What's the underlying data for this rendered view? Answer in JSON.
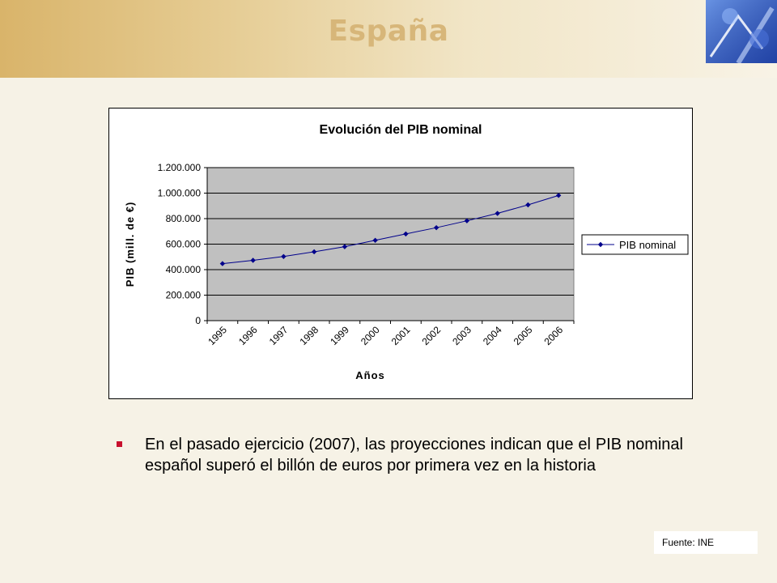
{
  "slide": {
    "title": "España",
    "bullet": "En el pasado ejercicio (2007), las proyecciones indican que el PIB nominal español superó el billón de euros por primera vez en la historia",
    "source": "Fuente: INE"
  },
  "colors": {
    "series": "#00008b",
    "plot_bg": "#c0c0c0",
    "title": "#d7b679",
    "bullet": "#c8102e"
  },
  "chart_data": {
    "type": "line",
    "title": "Evolución del PIB nominal",
    "xlabel": "Años",
    "ylabel": "PIB (mill. de €)",
    "ylim": [
      0,
      1200000
    ],
    "yticks": [
      0,
      200000,
      400000,
      600000,
      800000,
      1000000,
      1200000
    ],
    "ytick_labels": [
      "0",
      "200.000",
      "400.000",
      "600.000",
      "800.000",
      "1.000.000",
      "1.200.000"
    ],
    "x": [
      "1995",
      "1996",
      "1997",
      "1998",
      "1999",
      "2000",
      "2001",
      "2002",
      "2003",
      "2004",
      "2005",
      "2006"
    ],
    "series": [
      {
        "name": "PIB nominal",
        "values": [
          447000,
          473000,
          503000,
          540000,
          580000,
          630000,
          680000,
          729000,
          783000,
          841000,
          908000,
          982000
        ]
      }
    ],
    "grid": true,
    "legend": "right"
  }
}
